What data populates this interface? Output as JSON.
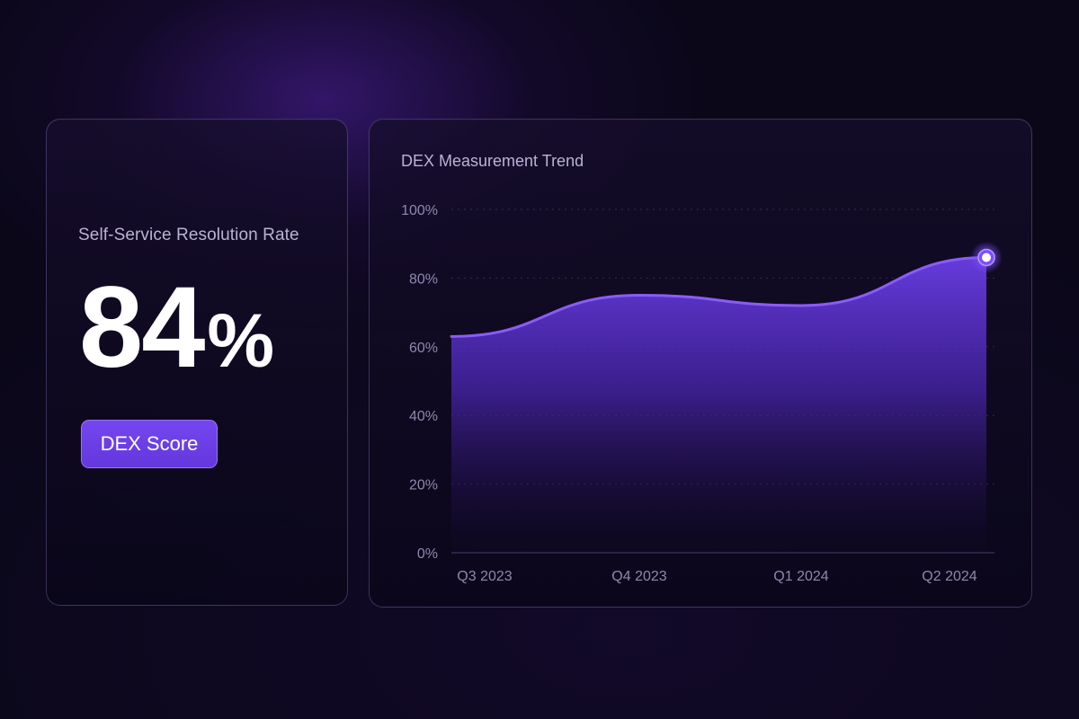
{
  "kpi": {
    "label": "Self-Service Resolution Rate",
    "value_number": "84",
    "value_unit": "%",
    "badge_label": "DEX Score"
  },
  "chart": {
    "title": "DEX Measurement Trend"
  },
  "colors": {
    "background": "#0b0719",
    "accent": "#7446f0",
    "line": "#8a5cf6",
    "area_top": "#6a3ee6",
    "marker": "#ffffff"
  },
  "chart_data": {
    "type": "area",
    "title": "DEX Measurement Trend",
    "x": [
      "Q3 2023",
      "Q4 2023",
      "Q1 2024",
      "Q2 2024"
    ],
    "series": [
      {
        "values": [
          63,
          75,
          72,
          86
        ]
      }
    ],
    "y_ticks": [
      "0%",
      "20%",
      "40%",
      "60%",
      "80%",
      "100%"
    ],
    "ylim": [
      0,
      100
    ],
    "grid": true,
    "highlight_last_point": true
  }
}
